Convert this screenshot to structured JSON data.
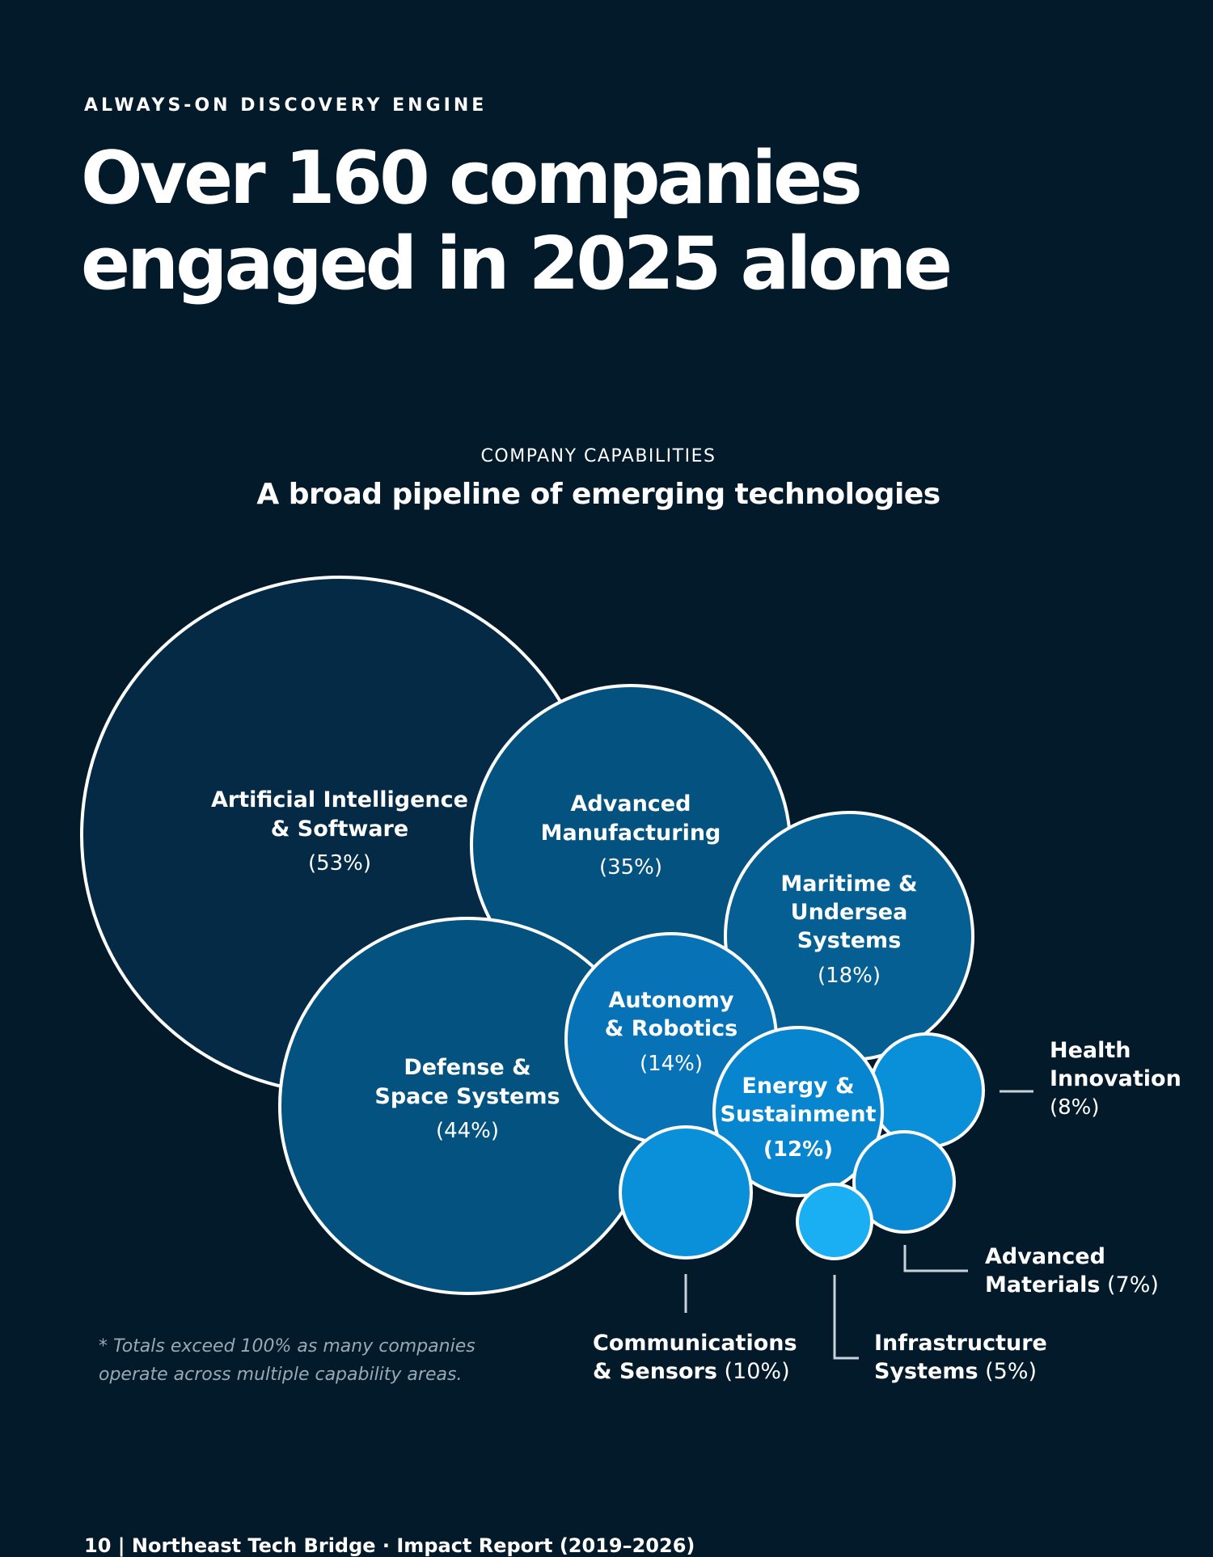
{
  "header": {
    "eyebrow": "ALWAYS-ON DISCOVERY ENGINE",
    "headline_line1": "Over 160 companies",
    "headline_line2": "engaged in 2025 alone"
  },
  "chart_data": {
    "type": "bubble",
    "kicker": "COMPANY CAPABILITIES",
    "title": "A broad pipeline of emerging technologies",
    "unit": "%",
    "series": [
      {
        "id": "ai",
        "label_lines": [
          "Artificial Intelligence",
          "& Software"
        ],
        "value": 53,
        "value_label": "(53%)",
        "color": "#042A45",
        "label_position": "inside"
      },
      {
        "id": "adv-manufacturing",
        "label_lines": [
          "Advanced",
          "Manufacturing"
        ],
        "value": 35,
        "value_label": "(35%)",
        "color": "#04527F",
        "label_position": "inside"
      },
      {
        "id": "maritime",
        "label_lines": [
          "Maritime &",
          "Undersea",
          "Systems"
        ],
        "value": 18,
        "value_label": "(18%)",
        "color": "#065F93",
        "label_position": "inside"
      },
      {
        "id": "defense",
        "label_lines": [
          "Defense &",
          "Space Systems"
        ],
        "value": 44,
        "value_label": "(44%)",
        "color": "#04527F",
        "label_position": "inside"
      },
      {
        "id": "autonomy",
        "label_lines": [
          "Autonomy",
          "& Robotics"
        ],
        "value": 14,
        "value_label": "(14%)",
        "color": "#0773B6",
        "label_position": "inside"
      },
      {
        "id": "energy",
        "label_lines": [
          "Energy &",
          "Sustainment"
        ],
        "value": 12,
        "value_label": "(12%)",
        "color": "#0785CF",
        "label_position": "inside"
      },
      {
        "id": "health",
        "label_lines": [
          "Health",
          "Innovation"
        ],
        "value": 8,
        "value_label": "(8%)",
        "color": "#0A8FD9",
        "label_position": "callout"
      },
      {
        "id": "comms",
        "label_lines": [
          "Communications",
          "& Sensors"
        ],
        "value": 10,
        "value_label": "(10%)",
        "color": "#0A8FD9",
        "label_position": "callout"
      },
      {
        "id": "materials",
        "label_lines": [
          "Advanced",
          "Materials"
        ],
        "value": 7,
        "value_label": "(7%)",
        "color": "#0A8AD4",
        "label_position": "callout"
      },
      {
        "id": "infrastructure",
        "label_lines": [
          "Infrastructure",
          "Systems"
        ],
        "value": 5,
        "value_label": "(5%)",
        "color": "#1AAEF2",
        "label_position": "callout"
      }
    ],
    "footnote_line1": "* Totals exceed 100% as many companies",
    "footnote_line2": "operate across multiple capability areas."
  },
  "footer": {
    "folio": "10 | Northeast Tech Bridge · Impact Report (2019–2026)"
  }
}
